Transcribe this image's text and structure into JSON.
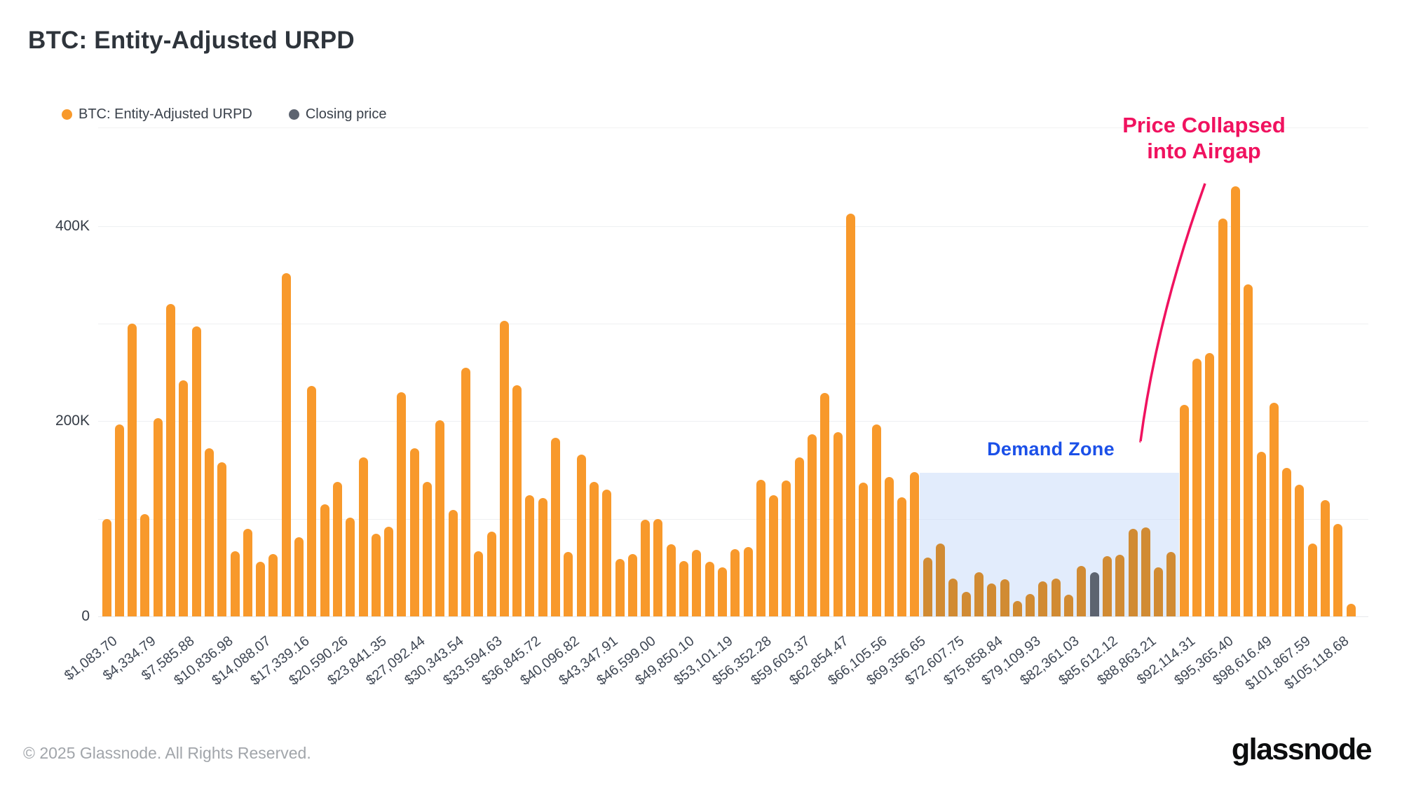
{
  "title": "BTC: Entity-Adjusted URPD",
  "legend": {
    "series1": "BTC: Entity-Adjusted URPD",
    "series2": "Closing price"
  },
  "annotations": {
    "price_collapsed": [
      "Price Collapsed",
      "into Airgap"
    ],
    "demand_zone": "Demand Zone"
  },
  "footer": {
    "copyright": "© 2025 Glassnode. All Rights Reserved.",
    "logo": "glassnode"
  },
  "colors": {
    "orange": "#f8992b",
    "muted_orange": "#d18b33",
    "gray": "#5d6470",
    "zone_fill": "rgba(203,220,249,0.55)",
    "pink": "#f0125f",
    "blue": "#1b50e8",
    "grid": "#eef0f2",
    "axis_text": "#3f4754"
  },
  "chart_data": {
    "type": "bar",
    "title": "BTC: Entity-Adjusted URPD",
    "xlabel": "",
    "ylabel": "",
    "ylim_k": [
      0,
      460
    ],
    "grid_every_k": 100,
    "legend_position": "top-left",
    "y_ticks": [
      {
        "value_k": 0,
        "label": "0"
      },
      {
        "value_k": 200,
        "label": "200K"
      },
      {
        "value_k": 400,
        "label": "400K"
      }
    ],
    "x_tick_labels": [
      "$1,083.70",
      "$4,334.79",
      "$7,585.88",
      "$10,836.98",
      "$14,088.07",
      "$17,339.16",
      "$20,590.26",
      "$23,841.35",
      "$27,092.44",
      "$30,343.54",
      "$33,594.63",
      "$36,845.72",
      "$40,096.82",
      "$43,347.91",
      "$46,599.00",
      "$49,850.10",
      "$53,101.19",
      "$56,352.28",
      "$59,603.37",
      "$62,854.47",
      "$66,105.56",
      "$69,356.65",
      "$72,607.75",
      "$75,858.84",
      "$79,109.93",
      "$82,361.03",
      "$85,612.12",
      "$88,863.21",
      "$92,114.31",
      "$95,365.40",
      "$98,616.49",
      "$101,867.59",
      "$105,118.68"
    ],
    "label_every_n_bars": 3,
    "series": [
      {
        "name": "BTC: Entity-Adjusted URPD",
        "color": "#f8992b"
      },
      {
        "name": "Closing price",
        "color": "#5d6470"
      }
    ],
    "values_k": [
      100,
      197,
      300,
      105,
      203,
      320,
      242,
      297,
      172,
      158,
      67,
      90,
      56,
      64,
      352,
      81,
      236,
      115,
      138,
      101,
      163,
      85,
      92,
      230,
      172,
      138,
      201,
      109,
      255,
      67,
      87,
      303,
      237,
      124,
      121,
      183,
      66,
      166,
      138,
      130,
      59,
      64,
      99,
      100,
      74,
      57,
      68,
      56,
      50,
      69,
      71,
      140,
      124,
      139,
      163,
      187,
      229,
      189,
      413,
      137,
      197,
      143,
      122,
      148,
      60,
      75,
      39,
      25,
      45,
      34,
      38,
      16,
      23,
      36,
      39,
      22,
      52,
      45,
      62,
      63,
      90,
      91,
      50,
      66,
      217,
      264,
      270,
      408,
      441,
      340,
      169,
      219,
      152,
      135,
      75,
      119,
      95,
      13
    ],
    "closing_price_bar_index": 77,
    "demand_zone": {
      "label": "Demand Zone",
      "start_bar": 64,
      "end_bar": 83,
      "top_value_k": 147
    }
  }
}
